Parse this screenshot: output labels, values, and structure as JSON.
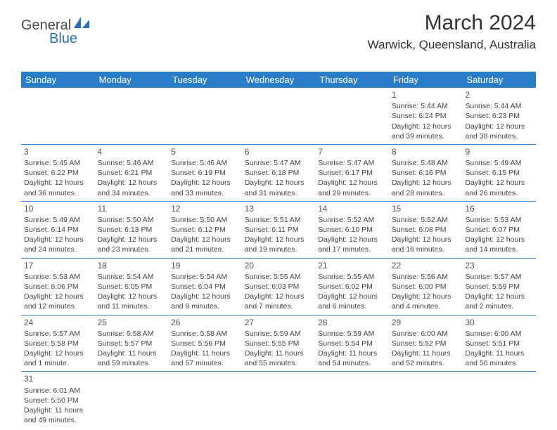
{
  "logo": {
    "text1": "General",
    "text2": "Blue",
    "color1": "#4a4a4a",
    "color2": "#2a6db8"
  },
  "header": {
    "month": "March 2024",
    "location": "Warwick, Queensland, Australia"
  },
  "theme": {
    "header_bg": "#2a7ec9",
    "header_fg": "#ffffff",
    "rule": "#2a7ec9",
    "text": "#444444"
  },
  "weekdays": [
    "Sunday",
    "Monday",
    "Tuesday",
    "Wednesday",
    "Thursday",
    "Friday",
    "Saturday"
  ],
  "weeks": [
    [
      null,
      null,
      null,
      null,
      null,
      {
        "n": "1",
        "sr": "Sunrise: 5:44 AM",
        "ss": "Sunset: 6:24 PM",
        "d1": "Daylight: 12 hours",
        "d2": "and 39 minutes."
      },
      {
        "n": "2",
        "sr": "Sunrise: 5:44 AM",
        "ss": "Sunset: 6:23 PM",
        "d1": "Daylight: 12 hours",
        "d2": "and 38 minutes."
      }
    ],
    [
      {
        "n": "3",
        "sr": "Sunrise: 5:45 AM",
        "ss": "Sunset: 6:22 PM",
        "d1": "Daylight: 12 hours",
        "d2": "and 36 minutes."
      },
      {
        "n": "4",
        "sr": "Sunrise: 5:46 AM",
        "ss": "Sunset: 6:21 PM",
        "d1": "Daylight: 12 hours",
        "d2": "and 34 minutes."
      },
      {
        "n": "5",
        "sr": "Sunrise: 5:46 AM",
        "ss": "Sunset: 6:19 PM",
        "d1": "Daylight: 12 hours",
        "d2": "and 33 minutes."
      },
      {
        "n": "6",
        "sr": "Sunrise: 5:47 AM",
        "ss": "Sunset: 6:18 PM",
        "d1": "Daylight: 12 hours",
        "d2": "and 31 minutes."
      },
      {
        "n": "7",
        "sr": "Sunrise: 5:47 AM",
        "ss": "Sunset: 6:17 PM",
        "d1": "Daylight: 12 hours",
        "d2": "and 29 minutes."
      },
      {
        "n": "8",
        "sr": "Sunrise: 5:48 AM",
        "ss": "Sunset: 6:16 PM",
        "d1": "Daylight: 12 hours",
        "d2": "and 28 minutes."
      },
      {
        "n": "9",
        "sr": "Sunrise: 5:49 AM",
        "ss": "Sunset: 6:15 PM",
        "d1": "Daylight: 12 hours",
        "d2": "and 26 minutes."
      }
    ],
    [
      {
        "n": "10",
        "sr": "Sunrise: 5:49 AM",
        "ss": "Sunset: 6:14 PM",
        "d1": "Daylight: 12 hours",
        "d2": "and 24 minutes."
      },
      {
        "n": "11",
        "sr": "Sunrise: 5:50 AM",
        "ss": "Sunset: 6:13 PM",
        "d1": "Daylight: 12 hours",
        "d2": "and 23 minutes."
      },
      {
        "n": "12",
        "sr": "Sunrise: 5:50 AM",
        "ss": "Sunset: 6:12 PM",
        "d1": "Daylight: 12 hours",
        "d2": "and 21 minutes."
      },
      {
        "n": "13",
        "sr": "Sunrise: 5:51 AM",
        "ss": "Sunset: 6:11 PM",
        "d1": "Daylight: 12 hours",
        "d2": "and 19 minutes."
      },
      {
        "n": "14",
        "sr": "Sunrise: 5:52 AM",
        "ss": "Sunset: 6:10 PM",
        "d1": "Daylight: 12 hours",
        "d2": "and 17 minutes."
      },
      {
        "n": "15",
        "sr": "Sunrise: 5:52 AM",
        "ss": "Sunset: 6:08 PM",
        "d1": "Daylight: 12 hours",
        "d2": "and 16 minutes."
      },
      {
        "n": "16",
        "sr": "Sunrise: 5:53 AM",
        "ss": "Sunset: 6:07 PM",
        "d1": "Daylight: 12 hours",
        "d2": "and 14 minutes."
      }
    ],
    [
      {
        "n": "17",
        "sr": "Sunrise: 5:53 AM",
        "ss": "Sunset: 6:06 PM",
        "d1": "Daylight: 12 hours",
        "d2": "and 12 minutes."
      },
      {
        "n": "18",
        "sr": "Sunrise: 5:54 AM",
        "ss": "Sunset: 6:05 PM",
        "d1": "Daylight: 12 hours",
        "d2": "and 11 minutes."
      },
      {
        "n": "19",
        "sr": "Sunrise: 5:54 AM",
        "ss": "Sunset: 6:04 PM",
        "d1": "Daylight: 12 hours",
        "d2": "and 9 minutes."
      },
      {
        "n": "20",
        "sr": "Sunrise: 5:55 AM",
        "ss": "Sunset: 6:03 PM",
        "d1": "Daylight: 12 hours",
        "d2": "and 7 minutes."
      },
      {
        "n": "21",
        "sr": "Sunrise: 5:55 AM",
        "ss": "Sunset: 6:02 PM",
        "d1": "Daylight: 12 hours",
        "d2": "and 6 minutes."
      },
      {
        "n": "22",
        "sr": "Sunrise: 5:56 AM",
        "ss": "Sunset: 6:00 PM",
        "d1": "Daylight: 12 hours",
        "d2": "and 4 minutes."
      },
      {
        "n": "23",
        "sr": "Sunrise: 5:57 AM",
        "ss": "Sunset: 5:59 PM",
        "d1": "Daylight: 12 hours",
        "d2": "and 2 minutes."
      }
    ],
    [
      {
        "n": "24",
        "sr": "Sunrise: 5:57 AM",
        "ss": "Sunset: 5:58 PM",
        "d1": "Daylight: 12 hours",
        "d2": "and 1 minute."
      },
      {
        "n": "25",
        "sr": "Sunrise: 5:58 AM",
        "ss": "Sunset: 5:57 PM",
        "d1": "Daylight: 11 hours",
        "d2": "and 59 minutes."
      },
      {
        "n": "26",
        "sr": "Sunrise: 5:58 AM",
        "ss": "Sunset: 5:56 PM",
        "d1": "Daylight: 11 hours",
        "d2": "and 57 minutes."
      },
      {
        "n": "27",
        "sr": "Sunrise: 5:59 AM",
        "ss": "Sunset: 5:55 PM",
        "d1": "Daylight: 11 hours",
        "d2": "and 55 minutes."
      },
      {
        "n": "28",
        "sr": "Sunrise: 5:59 AM",
        "ss": "Sunset: 5:54 PM",
        "d1": "Daylight: 11 hours",
        "d2": "and 54 minutes."
      },
      {
        "n": "29",
        "sr": "Sunrise: 6:00 AM",
        "ss": "Sunset: 5:52 PM",
        "d1": "Daylight: 11 hours",
        "d2": "and 52 minutes."
      },
      {
        "n": "30",
        "sr": "Sunrise: 6:00 AM",
        "ss": "Sunset: 5:51 PM",
        "d1": "Daylight: 11 hours",
        "d2": "and 50 minutes."
      }
    ],
    [
      {
        "n": "31",
        "sr": "Sunrise: 6:01 AM",
        "ss": "Sunset: 5:50 PM",
        "d1": "Daylight: 11 hours",
        "d2": "and 49 minutes."
      },
      null,
      null,
      null,
      null,
      null,
      null
    ]
  ]
}
